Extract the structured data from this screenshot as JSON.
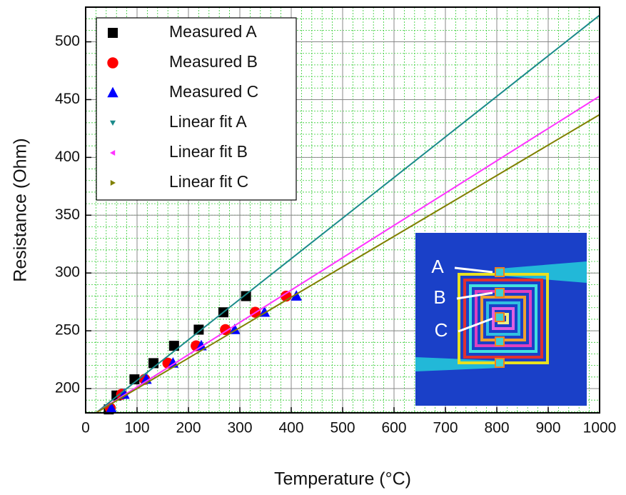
{
  "chart_data": {
    "type": "scatter",
    "x_label": "Temperature (°C)",
    "y_label": "Resistance (Ohm)",
    "xlim": [
      0,
      1000
    ],
    "xticks": [
      0,
      100,
      200,
      300,
      400,
      500,
      600,
      700,
      800,
      900,
      1000
    ],
    "ylim": [
      179,
      530
    ],
    "yticks": [
      200,
      250,
      300,
      350,
      400,
      450,
      500
    ],
    "grid": true,
    "legend": "upper left",
    "annotations": [
      "A",
      "B",
      "C"
    ],
    "series": [
      {
        "name": "Measured A",
        "color": "#000000",
        "marker": "square",
        "x": [
          45,
          60,
          95,
          132,
          172,
          220,
          268,
          312
        ],
        "values": [
          182,
          194,
          208,
          222,
          237,
          251,
          266,
          280
        ]
      },
      {
        "name": "Measured B",
        "color": "#ff0000",
        "marker": "circle",
        "x": [
          48,
          70,
          115,
          160,
          215,
          272,
          330,
          390
        ],
        "values": [
          183,
          195,
          208,
          222,
          237,
          251,
          266,
          280
        ]
      },
      {
        "name": "Measured C",
        "color": "#0000ff",
        "marker": "triangle",
        "x": [
          50,
          75,
          118,
          170,
          225,
          290,
          348,
          410
        ],
        "values": [
          183,
          195,
          208,
          222,
          237,
          251,
          266,
          280
        ]
      },
      {
        "name": "Linear fit A",
        "color": "#1a8a8a",
        "marker": "triangle-down",
        "line": true,
        "x": [
          20,
          1000
        ],
        "values": [
          179,
          523
        ]
      },
      {
        "name": "Linear fit B",
        "color": "#ff33ff",
        "marker": "triangle-left",
        "line": true,
        "x": [
          20,
          1000
        ],
        "values": [
          179,
          453
        ]
      },
      {
        "name": "Linear fit C",
        "color": "#808000",
        "marker": "triangle-right",
        "line": true,
        "x": [
          20,
          1000
        ],
        "values": [
          179,
          437
        ]
      }
    ]
  }
}
